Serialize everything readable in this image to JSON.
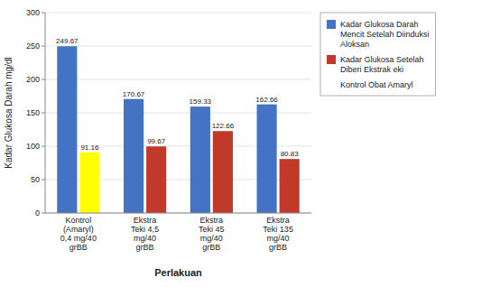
{
  "chart_data": {
    "type": "bar",
    "categories": [
      "Kontrol\n(Amaryl)\n0,4 mg/40\ngrBB",
      "Ekstra\nTeki 4,5\nmg/40\ngrBB",
      "Ekstra\nTeki 45\nmg/40\ngrBB",
      "Ekstra\nTeki 135\nmg/40\ngrBB"
    ],
    "series": [
      {
        "name": "Kadar Glukosa Darah\nMencit Setelah Diinduksi\nAloksan",
        "color": "#4472C4",
        "values": [
          249.67,
          170.67,
          159.33,
          162.66
        ]
      },
      {
        "name": "Kadar Glukosa Setelah\nDiberi Ekstrak eki",
        "color": "#C0392B",
        "colors": [
          "#FFFF00",
          "#C0392B",
          "#C0392B",
          "#C0392B"
        ],
        "values": [
          91.16,
          99.67,
          122.66,
          80.83
        ]
      }
    ],
    "annotations": [
      "Kontrol Obat Amaryl"
    ],
    "x_label": "Perlakuan",
    "y_label": "Kadar Glukosa Darah mg/dl",
    "ylim": [
      0,
      300
    ],
    "yticks": [
      0,
      50,
      100,
      150,
      200,
      250,
      300
    ],
    "grid": true,
    "legend": "right",
    "data_labels": true
  }
}
